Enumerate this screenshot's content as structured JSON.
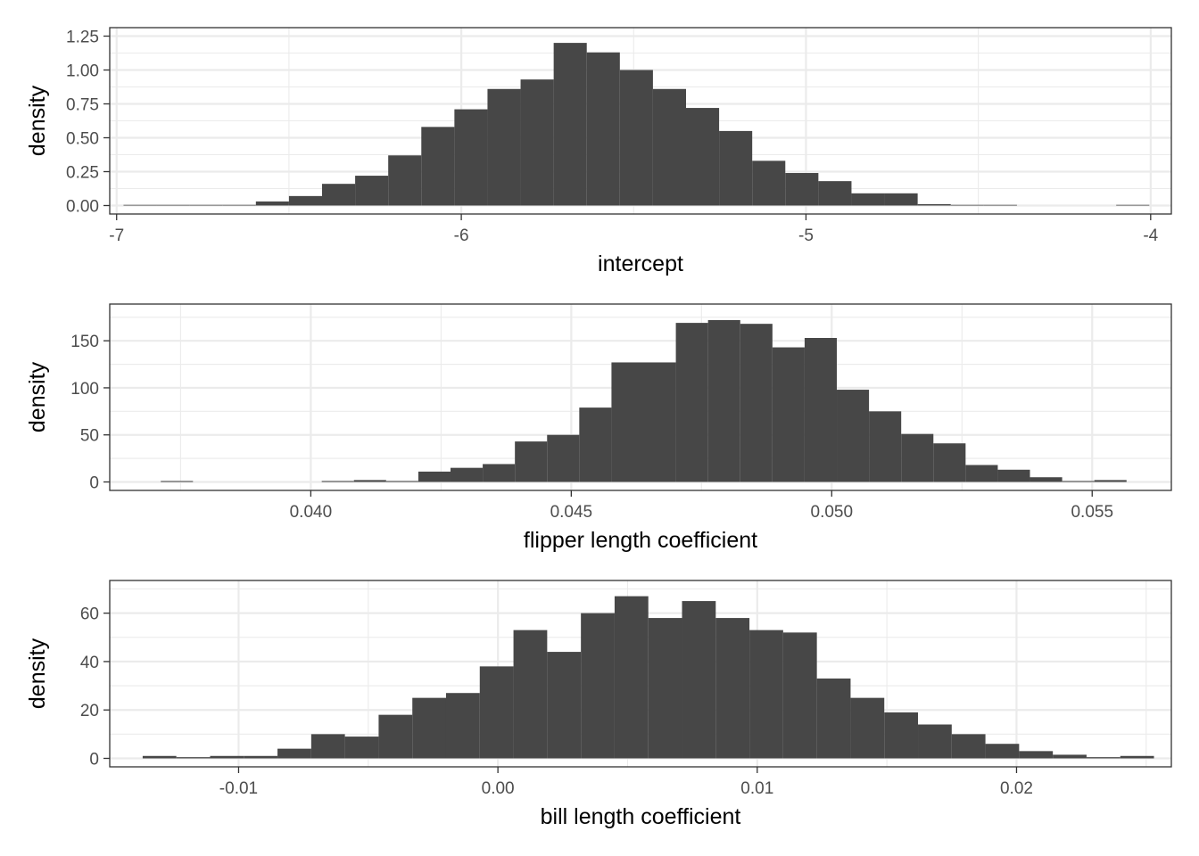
{
  "chart_data": [
    {
      "type": "bar",
      "xlabel": "intercept",
      "ylabel": "density",
      "xlim": [
        -7.02,
        -3.94
      ],
      "ylim": [
        0,
        1.25
      ],
      "xticks": [
        -7,
        -6,
        -5,
        -4
      ],
      "xtick_labels": [
        "-7",
        "-6",
        "-5",
        "-4"
      ],
      "yticks": [
        0,
        0.25,
        0.5,
        0.75,
        1.0,
        1.25
      ],
      "ytick_labels": [
        "0.00",
        "0.25",
        "0.50",
        "0.75",
        "1.00",
        "1.25"
      ],
      "grid": true,
      "bin_start": -6.98,
      "bin_width": 0.096,
      "values": [
        0.005,
        0.005,
        0.005,
        0.005,
        0.03,
        0.07,
        0.16,
        0.22,
        0.37,
        0.58,
        0.71,
        0.86,
        0.93,
        1.2,
        1.13,
        1.0,
        0.86,
        0.72,
        0.55,
        0.33,
        0.24,
        0.18,
        0.09,
        0.09,
        0.01,
        0.005,
        0.005,
        0,
        0,
        0,
        0.005
      ]
    },
    {
      "type": "bar",
      "xlabel": "flipper length coefficient",
      "ylabel": "density",
      "xlim": [
        0.03614,
        0.05652
      ],
      "ylim": [
        0,
        180
      ],
      "xticks": [
        0.04,
        0.045,
        0.05,
        0.055
      ],
      "xtick_labels": [
        "0.040",
        "0.045",
        "0.050",
        "0.055"
      ],
      "yticks": [
        0,
        50,
        100,
        150
      ],
      "ytick_labels": [
        "0",
        "50",
        "100",
        "150"
      ],
      "grid": true,
      "bin_start": 0.03712,
      "bin_width": 0.000618,
      "values": [
        1,
        0,
        0,
        0,
        0,
        1,
        2,
        1,
        11,
        15,
        19,
        43,
        50,
        79,
        127,
        127,
        169,
        172,
        168,
        143,
        153,
        98,
        75,
        51,
        41,
        18,
        13,
        5,
        1,
        2
      ]
    },
    {
      "type": "bar",
      "xlabel": "bill length coefficient",
      "ylabel": "density",
      "xlim": [
        -0.01497,
        0.02597
      ],
      "ylim": [
        0,
        70
      ],
      "xticks": [
        -0.01,
        0.0,
        0.01,
        0.02
      ],
      "xtick_labels": [
        "-0.01",
        "0.00",
        "0.01",
        "0.02"
      ],
      "yticks": [
        0,
        20,
        40,
        60
      ],
      "ytick_labels": [
        "0",
        "20",
        "40",
        "60"
      ],
      "grid": true,
      "bin_start": -0.0137,
      "bin_width": 0.0013,
      "values": [
        1,
        0.5,
        1,
        1,
        4,
        10,
        9,
        18,
        25,
        27,
        38,
        53,
        44,
        60,
        67,
        58,
        65,
        58,
        53,
        52,
        33,
        25,
        19,
        14,
        10,
        6,
        3,
        1.5,
        0.5,
        1
      ]
    }
  ]
}
